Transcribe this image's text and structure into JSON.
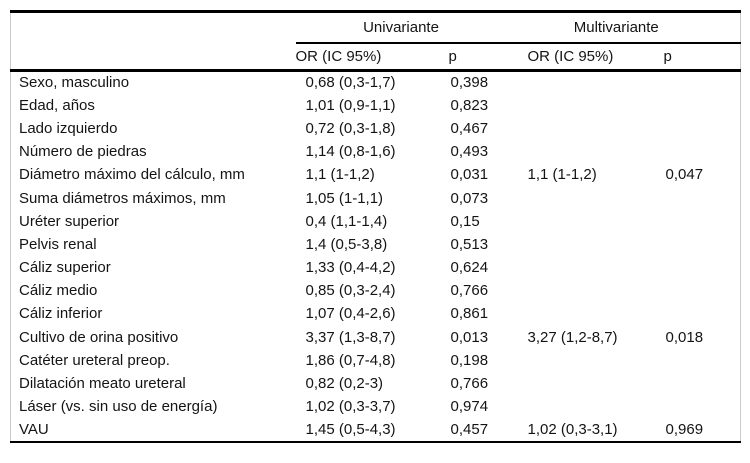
{
  "table": {
    "corner_label": "",
    "group_headers": [
      {
        "label": "Univariante"
      },
      {
        "label": "Multivariante"
      }
    ],
    "column_headers": {
      "uni_or": "OR (IC 95%)",
      "uni_p": "p",
      "multi_or": "OR (IC 95%)",
      "multi_p": "p"
    },
    "rows": [
      {
        "label": "Sexo, masculino",
        "uni_or": "0,68 (0,3-1,7)",
        "uni_p": "0,398",
        "multi_or": "",
        "multi_p": ""
      },
      {
        "label": "Edad, años",
        "uni_or": "1,01 (0,9-1,1)",
        "uni_p": "0,823",
        "multi_or": "",
        "multi_p": ""
      },
      {
        "label": "Lado izquierdo",
        "uni_or": "0,72 (0,3-1,8)",
        "uni_p": "0,467",
        "multi_or": "",
        "multi_p": ""
      },
      {
        "label": "Número de piedras",
        "uni_or": "1,14 (0,8-1,6)",
        "uni_p": "0,493",
        "multi_or": "",
        "multi_p": ""
      },
      {
        "label": "Diámetro máximo del cálculo, mm",
        "uni_or": "1,1 (1-1,2)",
        "uni_p": "0,031",
        "multi_or": "1,1 (1-1,2)",
        "multi_p": "0,047"
      },
      {
        "label": "Suma diámetros máximos, mm",
        "uni_or": "1,05 (1-1,1)",
        "uni_p": "0,073",
        "multi_or": "",
        "multi_p": ""
      },
      {
        "label": "Uréter superior",
        "uni_or": "0,4 (1,1-1,4)",
        "uni_p": "0,15",
        "multi_or": "",
        "multi_p": ""
      },
      {
        "label": "Pelvis renal",
        "uni_or": "1,4 (0,5-3,8)",
        "uni_p": "0,513",
        "multi_or": "",
        "multi_p": ""
      },
      {
        "label": "Cáliz superior",
        "uni_or": "1,33 (0,4-4,2)",
        "uni_p": "0,624",
        "multi_or": "",
        "multi_p": ""
      },
      {
        "label": "Cáliz medio",
        "uni_or": "0,85 (0,3-2,4)",
        "uni_p": "0,766",
        "multi_or": "",
        "multi_p": ""
      },
      {
        "label": "Cáliz inferior",
        "uni_or": "1,07 (0,4-2,6)",
        "uni_p": "0,861",
        "multi_or": "",
        "multi_p": ""
      },
      {
        "label": "Cultivo de orina positivo",
        "uni_or": "3,37 (1,3-8,7)",
        "uni_p": "0,013",
        "multi_or": "3,27 (1,2-8,7)",
        "multi_p": "0,018"
      },
      {
        "label": "Catéter ureteral preop.",
        "uni_or": "1,86 (0,7-4,8)",
        "uni_p": "0,198",
        "multi_or": "",
        "multi_p": ""
      },
      {
        "label": "Dilatación meato ureteral",
        "uni_or": "0,82 (0,2-3)",
        "uni_p": "0,766",
        "multi_or": "",
        "multi_p": ""
      },
      {
        "label": "Láser (vs. sin uso de energía)",
        "uni_or": "1,02 (0,3-3,7)",
        "uni_p": "0,974",
        "multi_or": "",
        "multi_p": ""
      },
      {
        "label": "VAU",
        "uni_or": "1,45 (0,5-4,3)",
        "uni_p": "0,457",
        "multi_or": "1,02 (0,3-3,1)",
        "multi_p": "0,969"
      }
    ]
  },
  "colors": {
    "rule": "#000000",
    "side_border": "#cccccc",
    "text": "#141414",
    "background": "#ffffff"
  }
}
